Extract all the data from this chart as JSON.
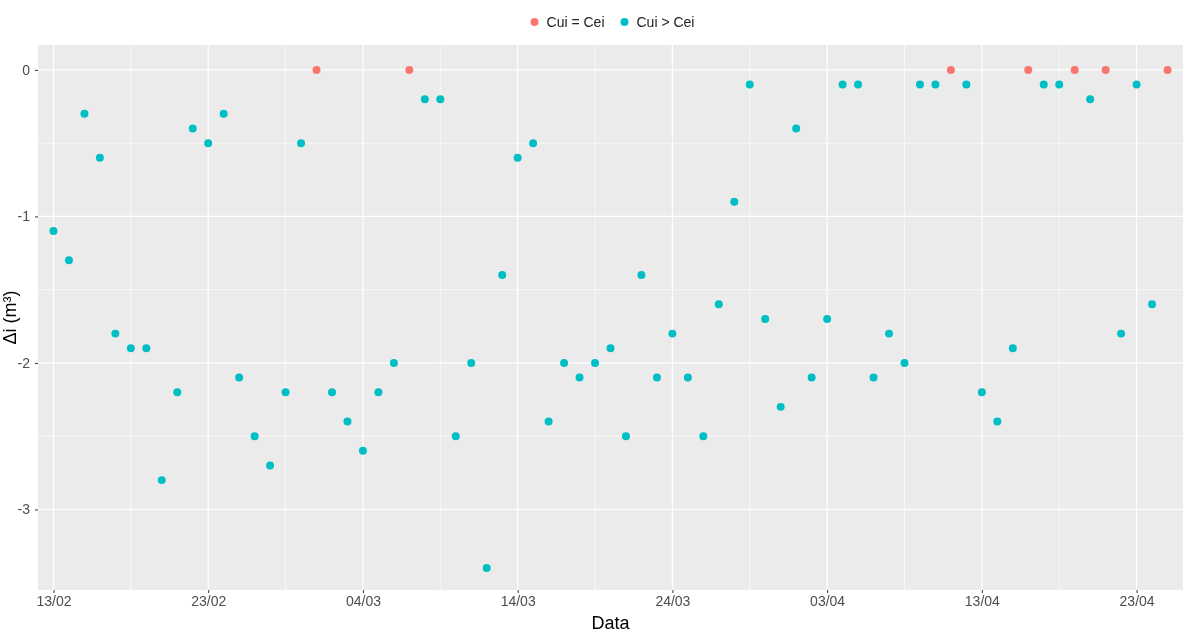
{
  "chart_data": {
    "type": "scatter",
    "xlabel": "Data",
    "ylabel": "Δi (m³)",
    "legend": "top",
    "grid": true,
    "marker": "circle",
    "xlim": [
      "--02-12",
      "--04-26"
    ],
    "xticks": [
      {
        "value": "--02-13",
        "label": "13/02"
      },
      {
        "value": "--02-23",
        "label": "23/02"
      },
      {
        "value": "--03-04",
        "label": "04/03"
      },
      {
        "value": "--03-14",
        "label": "14/03"
      },
      {
        "value": "--03-24",
        "label": "24/03"
      },
      {
        "value": "--04-03",
        "label": "03/04"
      },
      {
        "value": "--04-13",
        "label": "13/04"
      },
      {
        "value": "--04-23",
        "label": "23/04"
      }
    ],
    "ylim": [
      -3.55,
      0.17
    ],
    "yticks": [
      0,
      -1,
      -2,
      -3
    ],
    "series": [
      {
        "name": "Cui = Cei",
        "color": "#f8766d",
        "x": [
          "--03-01",
          "--03-07",
          "--04-11",
          "--04-16",
          "--04-19",
          "--04-21",
          "--04-25"
        ],
        "values": [
          0,
          0,
          0,
          0,
          0,
          0,
          0
        ]
      },
      {
        "name": "Cui > Cei",
        "color": "#00bfc4",
        "x": [
          "--02-13",
          "--02-14",
          "--02-15",
          "--02-16",
          "--02-17",
          "--02-18",
          "--02-19",
          "--02-20",
          "--02-21",
          "--02-22",
          "--02-23",
          "--02-24",
          "--02-25",
          "--02-26",
          "--02-27",
          "--02-28",
          "--02-29",
          "--03-02",
          "--03-03",
          "--03-04",
          "--03-05",
          "--03-06",
          "--03-08",
          "--03-09",
          "--03-10",
          "--03-11",
          "--03-12",
          "--03-13",
          "--03-14",
          "--03-15",
          "--03-16",
          "--03-17",
          "--03-18",
          "--03-19",
          "--03-20",
          "--03-21",
          "--03-22",
          "--03-23",
          "--03-24",
          "--03-25",
          "--03-26",
          "--03-27",
          "--03-28",
          "--03-29",
          "--03-30",
          "--03-31",
          "--04-01",
          "--04-02",
          "--04-03",
          "--04-04",
          "--04-05",
          "--04-06",
          "--04-07",
          "--04-08",
          "--04-09",
          "--04-10",
          "--04-12",
          "--04-13",
          "--04-14",
          "--04-15",
          "--04-17",
          "--04-18",
          "--04-20",
          "--04-22",
          "--04-23",
          "--04-24"
        ],
        "values": [
          -1.1,
          -1.3,
          -0.3,
          -0.6,
          -1.8,
          -1.9,
          -1.9,
          -2.8,
          -2.2,
          -0.4,
          -0.5,
          -0.3,
          -2.1,
          -2.5,
          -2.7,
          -2.2,
          -0.5,
          -2.2,
          -2.4,
          -2.6,
          -2.2,
          -2.0,
          -0.2,
          -0.2,
          -2.5,
          -2.0,
          -3.4,
          -1.4,
          -0.6,
          -0.5,
          -2.4,
          -2.0,
          -2.1,
          -2.0,
          -1.9,
          -2.5,
          -1.4,
          -2.1,
          -1.8,
          -2.1,
          -2.5,
          -1.6,
          -0.9,
          -0.1,
          -1.7,
          -2.3,
          -0.4,
          -2.1,
          -1.7,
          -0.1,
          -0.1,
          -2.1,
          -1.8,
          -2.0,
          -0.1,
          -0.1,
          -0.1,
          -2.2,
          -2.4,
          -1.9,
          -0.1,
          -0.1,
          -0.2,
          -1.8,
          -0.1,
          -1.6
        ]
      }
    ]
  }
}
